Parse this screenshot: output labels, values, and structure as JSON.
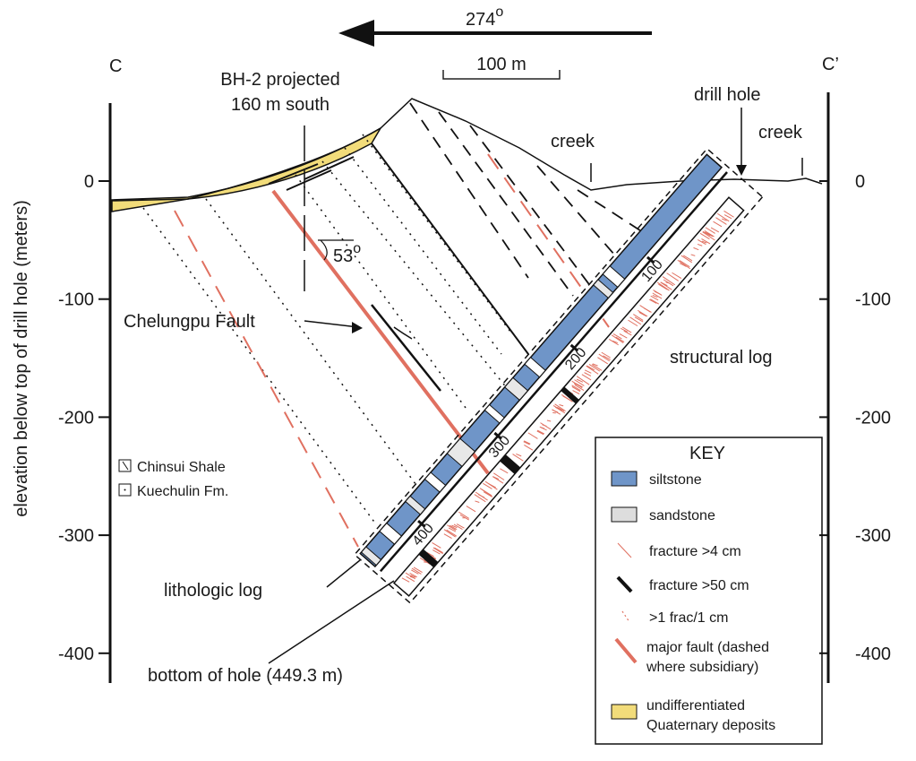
{
  "direction": {
    "value": "274",
    "sup": "o"
  },
  "section": {
    "start": "C",
    "end": "C’"
  },
  "scale": "100 m",
  "y_axis": {
    "label": "elevation below top of drill hole (meters)",
    "ticks": [
      0,
      -100,
      -200,
      -300,
      -400
    ]
  },
  "annotations": {
    "bh2": [
      "BH-2 projected",
      "160 m south"
    ],
    "drill_hole": "drill hole",
    "creek_1": "creek",
    "creek_2": "creek",
    "dip": {
      "value": "53",
      "sup": "o"
    },
    "fault": "Chelungpu Fault",
    "structural_log": "structural log",
    "lithologic_log": "lithologic log",
    "bottom": "bottom of hole (449.3 m)"
  },
  "depth_ticks": [
    100,
    200,
    300,
    400
  ],
  "inset_legend": [
    "Chinsui Shale",
    "Kuechulin Fm."
  ],
  "key": {
    "title": "KEY",
    "items": [
      [
        "siltstone"
      ],
      [
        "sandstone"
      ],
      [
        "fracture >4 cm"
      ],
      [
        "fracture >50 cm"
      ],
      [
        ">1 frac/1 cm"
      ],
      [
        "major fault (dashed",
        "where subsidiary)"
      ],
      [
        "undifferentiated",
        "Quaternary deposits"
      ]
    ]
  }
}
